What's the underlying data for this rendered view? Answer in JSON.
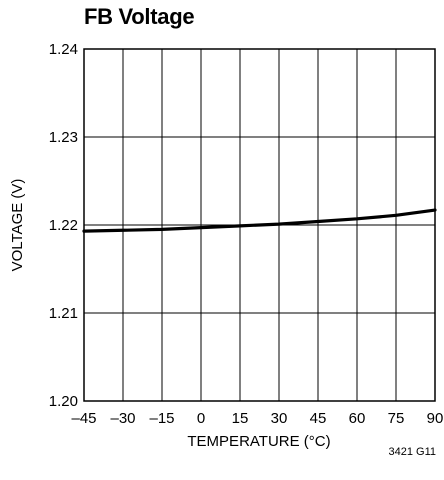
{
  "chart_data": {
    "type": "line",
    "title": "FB Voltage",
    "xlabel": "TEMPERATURE (°C)",
    "ylabel": "VOLTAGE (V)",
    "xlim": [
      -45,
      90
    ],
    "ylim": [
      1.2,
      1.24
    ],
    "x_ticks": [
      "–45",
      "–30",
      "–15",
      "0",
      "15",
      "30",
      "45",
      "60",
      "75",
      "90"
    ],
    "x_tick_values": [
      -45,
      -30,
      -15,
      0,
      15,
      30,
      45,
      60,
      75,
      90
    ],
    "y_ticks": [
      "1.24",
      "1.23",
      "1.22",
      "1.21",
      "1.20"
    ],
    "y_tick_values": [
      1.24,
      1.23,
      1.22,
      1.21,
      1.2
    ],
    "grid": true,
    "series": [
      {
        "color": "#000000",
        "x": [
          -45,
          -30,
          -15,
          0,
          15,
          30,
          45,
          60,
          75,
          90
        ],
        "y": [
          1.2193,
          1.2194,
          1.2195,
          1.2197,
          1.2199,
          1.2201,
          1.2204,
          1.2207,
          1.2211,
          1.2217
        ]
      }
    ]
  },
  "figure_id": "3421 G11"
}
